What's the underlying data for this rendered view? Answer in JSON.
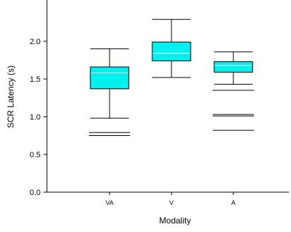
{
  "chart_data": {
    "type": "box",
    "xlabel": "Modality",
    "ylabel": "SCR Latency (s)",
    "ylim": [
      0,
      2.5
    ],
    "yticks": [
      0.0,
      0.5,
      1.0,
      1.5,
      2.0
    ],
    "ytick_labels": [
      "0.0",
      "0.5",
      "1.0",
      "1.5",
      "2.0"
    ],
    "grid": false,
    "categories": [
      "VA",
      "V",
      "A"
    ],
    "box_color": "#00f0f0",
    "median_color": "#ffffff",
    "boxes": [
      {
        "category": "VA",
        "whisker_low": 0.98,
        "q1": 1.37,
        "median": 1.58,
        "q3": 1.66,
        "whisker_high": 1.9,
        "outliers": [
          0.79,
          0.75
        ]
      },
      {
        "category": "V",
        "whisker_low": 1.52,
        "q1": 1.74,
        "median": 1.84,
        "q3": 1.99,
        "whisker_high": 2.29,
        "outliers": []
      },
      {
        "category": "A",
        "whisker_low": 1.43,
        "q1": 1.59,
        "median": 1.68,
        "q3": 1.73,
        "whisker_high": 1.86,
        "outliers": [
          1.35,
          1.03,
          1.01,
          0.82
        ]
      }
    ]
  }
}
